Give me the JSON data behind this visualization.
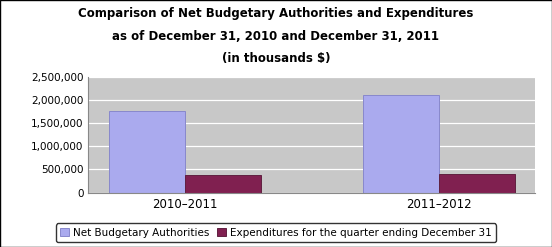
{
  "title_line1": "Comparison of Net Budgetary Authorities and Expenditures",
  "title_line2": "as of December 31, 2010 and December 31, 2011",
  "title_line3": "(in thousands $)",
  "categories": [
    "2010–2011",
    "2011–2012"
  ],
  "net_budgetary": [
    1750000,
    2100000
  ],
  "expenditures": [
    380000,
    410000
  ],
  "bar_color_net": "#aaaaee",
  "bar_color_exp": "#802050",
  "bar_edgecolor_net": "#8888cc",
  "bar_edgecolor_exp": "#602040",
  "plot_bg_color": "#c8c8c8",
  "fig_bg_color": "#ffffff",
  "ylim": [
    0,
    2500000
  ],
  "yticks": [
    0,
    500000,
    1000000,
    1500000,
    2000000,
    2500000
  ],
  "ytick_labels": [
    "0",
    "500,000",
    "1,000,000",
    "1,500,000",
    "2,000,000",
    "2,500,000"
  ],
  "legend_label_net": "Net Budgetary Authorities",
  "legend_label_exp": "Expenditures for the quarter ending December 31",
  "bar_width": 0.3,
  "title_fontsize": 8.5,
  "tick_fontsize": 7.5,
  "legend_fontsize": 7.5,
  "xlabel_fontsize": 8.5
}
